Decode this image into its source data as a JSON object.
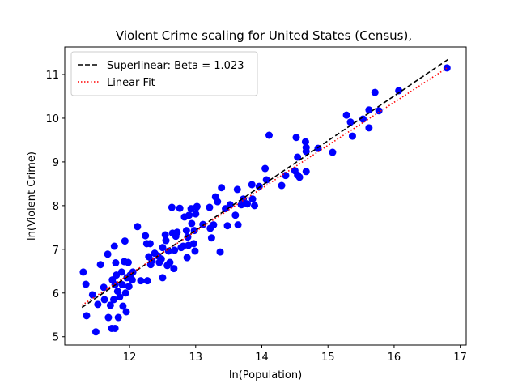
{
  "chart_data": {
    "type": "scatter",
    "title": "Violent Crime scaling for United States (Census),",
    "x_label": "ln(Population)",
    "y_label": "ln(Violent Crime)",
    "xlim": [
      11.02,
      17.09
    ],
    "ylim": [
      4.81,
      11.63
    ],
    "xticks": [
      12,
      13,
      14,
      15,
      16,
      17
    ],
    "yticks": [
      5,
      6,
      7,
      8,
      9,
      10,
      11
    ],
    "grid": false,
    "legend": "upper left",
    "series": [
      {
        "type": "scatter",
        "color": "#0000ff",
        "x": [
          11.3,
          11.34,
          11.35,
          11.49,
          11.44,
          11.52,
          11.56,
          11.61,
          11.62,
          11.67,
          11.68,
          11.71,
          11.73,
          11.77,
          11.76,
          11.78,
          11.74,
          11.78,
          11.79,
          11.8,
          11.82,
          11.83,
          11.85,
          11.88,
          11.89,
          11.9,
          11.92,
          11.93,
          11.94,
          11.95,
          11.96,
          11.98,
          11.99,
          12.01,
          12.04,
          12.05,
          12.12,
          12.17,
          12.24,
          12.26,
          12.27,
          12.29,
          12.31,
          12.32,
          12.34,
          12.38,
          12.43,
          12.45,
          12.48,
          12.5,
          12.5,
          12.54,
          12.55,
          12.57,
          12.59,
          12.61,
          12.64,
          12.65,
          12.67,
          12.7,
          12.68,
          12.72,
          12.76,
          12.78,
          12.81,
          12.83,
          12.86,
          12.87,
          12.88,
          12.89,
          12.9,
          12.93,
          12.94,
          12.97,
          12.98,
          12.99,
          13.0,
          13.01,
          13.02,
          13.11,
          13.21,
          13.22,
          13.24,
          13.27,
          13.3,
          13.33,
          13.37,
          13.39,
          13.45,
          13.48,
          13.52,
          13.6,
          13.63,
          13.64,
          13.69,
          13.72,
          13.78,
          13.86,
          13.85,
          13.89,
          13.96,
          14.07,
          14.05,
          14.11,
          14.3,
          14.36,
          14.5,
          14.52,
          14.54,
          14.54,
          14.57,
          14.66,
          14.67,
          14.67,
          14.67,
          14.85,
          15.07,
          15.28,
          15.34,
          15.37,
          15.53,
          15.62,
          15.62,
          15.71,
          15.77,
          16.07,
          16.8
        ],
        "values": [
          6.48,
          6.2,
          5.48,
          5.11,
          5.96,
          5.74,
          6.65,
          6.13,
          5.85,
          6.89,
          5.44,
          5.72,
          5.19,
          7.07,
          5.85,
          5.19,
          6.3,
          6.19,
          6.69,
          6.41,
          6.04,
          5.44,
          5.91,
          6.48,
          6.19,
          5.7,
          6.72,
          7.19,
          6.0,
          5.57,
          6.35,
          6.7,
          6.15,
          6.41,
          6.3,
          6.48,
          7.52,
          6.28,
          7.31,
          7.13,
          6.28,
          6.83,
          7.13,
          6.65,
          6.74,
          6.91,
          6.85,
          6.7,
          6.78,
          6.35,
          7.04,
          7.33,
          7.2,
          6.63,
          6.96,
          6.7,
          7.96,
          7.37,
          6.56,
          7.3,
          6.98,
          7.39,
          7.94,
          7.04,
          7.07,
          7.74,
          7.43,
          6.81,
          7.28,
          7.09,
          7.78,
          7.93,
          7.59,
          7.13,
          7.43,
          6.96,
          7.81,
          7.96,
          7.98,
          7.57,
          7.96,
          7.48,
          7.26,
          7.56,
          8.2,
          8.09,
          6.94,
          8.41,
          7.93,
          7.54,
          8.02,
          7.78,
          8.37,
          7.56,
          8.02,
          8.15,
          8.04,
          8.15,
          8.48,
          8.0,
          8.44,
          8.59,
          8.85,
          9.61,
          8.46,
          8.69,
          8.8,
          9.56,
          9.11,
          8.7,
          8.65,
          9.46,
          9.24,
          8.78,
          9.33,
          9.31,
          9.22,
          10.07,
          9.91,
          9.59,
          9.98,
          10.19,
          9.78,
          10.59,
          10.17,
          10.63,
          11.15
        ]
      },
      {
        "type": "line",
        "name": "Superlinear: Beta = 1.023",
        "color": "#000000",
        "linestyle": "dashed",
        "x": [
          11.28,
          16.82
        ],
        "values": [
          5.67,
          11.35
        ]
      },
      {
        "type": "line",
        "name": "Linear Fit",
        "color": "#ff0000",
        "linestyle": "dotted",
        "x": [
          11.28,
          16.82
        ],
        "values": [
          5.72,
          11.17
        ]
      }
    ]
  }
}
